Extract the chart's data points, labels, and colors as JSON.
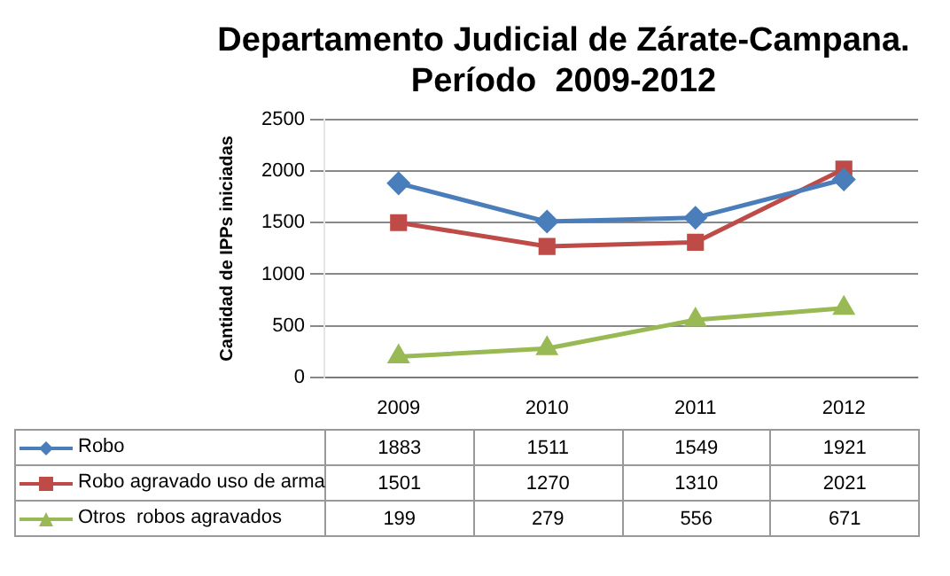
{
  "chart_data": {
    "type": "line",
    "title": "Departamento Judicial de Zárate-Campana.\nPeríodo  2009-2012",
    "ylabel": "Cantidad de IPPs iniciadas",
    "categories": [
      "2009",
      "2010",
      "2011",
      "2012"
    ],
    "series": [
      {
        "name": "Robo",
        "color": "#4a7ebb",
        "marker": "diamond",
        "values": [
          1883,
          1511,
          1549,
          1921
        ]
      },
      {
        "name": "Robo agravado uso de arma",
        "color": "#be4b48",
        "marker": "square",
        "values": [
          1501,
          1270,
          1310,
          2021
        ]
      },
      {
        "name": "Otros  robos agravados",
        "color": "#98b954",
        "marker": "triangle",
        "values": [
          199,
          279,
          556,
          671
        ]
      }
    ],
    "ylim": [
      0,
      2500
    ],
    "yticks": [
      0,
      500,
      1000,
      1500,
      2000,
      2500
    ],
    "grid": "y",
    "legend": "bottom",
    "data_labels": true
  }
}
